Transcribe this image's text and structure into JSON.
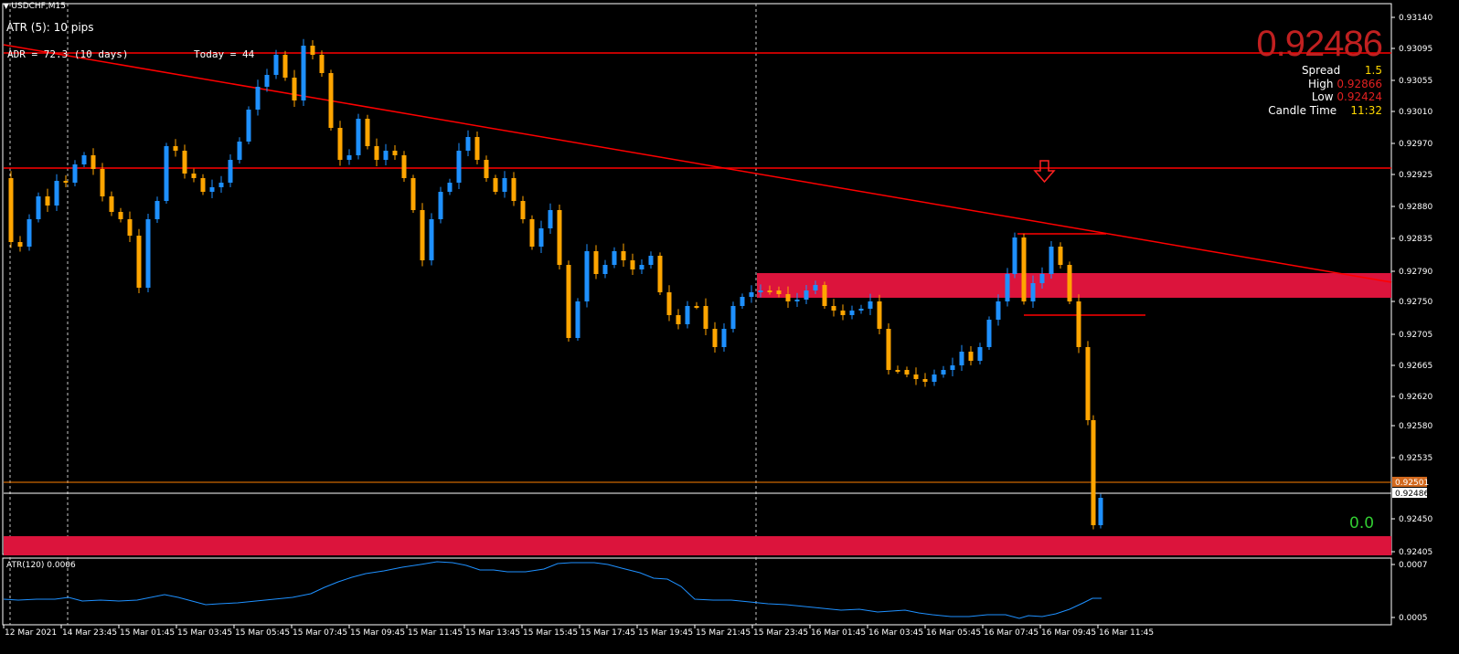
{
  "window": {
    "symbol": "USDCHF,M15"
  },
  "indicators": {
    "atr_label": "ATR (5): 10 pips",
    "adr_label": "ADR = 72.3  (10 days)",
    "today_label": "Today = 44",
    "sub_window_label": "ATR(120) 0.0006"
  },
  "info_panel": {
    "bid_price": "0.92486",
    "spread_label": "Spread",
    "spread_value": "1.5",
    "high_label": "High",
    "high_value": "0.92866",
    "low_label": "Low",
    "low_value": "0.92424",
    "candle_time_label": "Candle Time",
    "candle_time_value": "11:32"
  },
  "pnl_value": "0.0",
  "price_axis": {
    "ticks": [
      "0.93140",
      "0.93095",
      "0.93055",
      "0.93010",
      "0.92970",
      "0.92925",
      "0.92880",
      "0.92835",
      "0.92790",
      "0.92750",
      "0.92705",
      "0.92665",
      "0.92620",
      "0.92580",
      "0.92535",
      "0.92450",
      "0.92405"
    ],
    "ask_tag": "0.92501",
    "bid_tag": "0.92486"
  },
  "sub_axis": {
    "ticks": [
      "0.0007",
      "0.0005"
    ]
  },
  "time_axis": {
    "labels": [
      "12 Mar 2021",
      "14 Mar 23:45",
      "15 Mar 01:45",
      "15 Mar 03:45",
      "15 Mar 05:45",
      "15 Mar 07:45",
      "15 Mar 09:45",
      "15 Mar 11:45",
      "15 Mar 13:45",
      "15 Mar 15:45",
      "15 Mar 17:45",
      "15 Mar 19:45",
      "15 Mar 21:45",
      "15 Mar 23:45",
      "16 Mar 01:45",
      "16 Mar 03:45",
      "16 Mar 05:45",
      "16 Mar 07:45",
      "16 Mar 09:45",
      "16 Mar 11:45"
    ]
  },
  "colors": {
    "background": "#000000",
    "bull_candle": "#1E90FF",
    "bear_candle": "#FFA500",
    "trendline": "#FF0000",
    "zone": "#DC143C",
    "bid_line": "#FFFFFF",
    "ask_line": "#FF7F00",
    "atr_line": "#1E90FF",
    "big_price": "#C02020",
    "spread_value": "#FFD700",
    "high_low_value": "#E02020",
    "candle_time_value": "#FFD700",
    "pnl": "#32CD32"
  },
  "icons": {
    "sell_signal": "red-down-arrow-icon"
  }
}
